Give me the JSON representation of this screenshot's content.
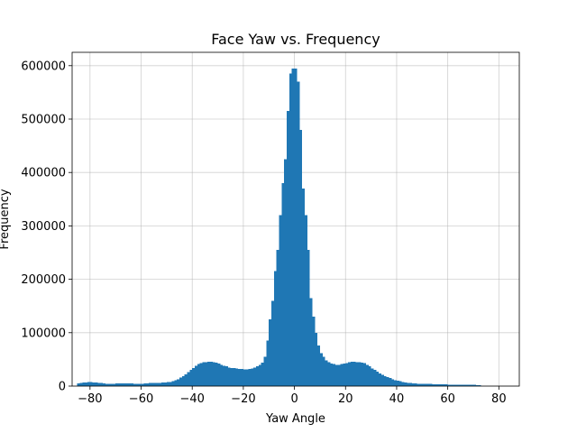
{
  "chart_data": {
    "type": "bar",
    "title": "Face Yaw vs. Frequency",
    "xlabel": "Yaw Angle",
    "ylabel": "Frequency",
    "xlim": [
      -87,
      88
    ],
    "ylim": [
      0,
      625000
    ],
    "xticks": [
      -80,
      -60,
      -40,
      -20,
      0,
      20,
      40,
      60,
      80
    ],
    "xtick_labels": [
      "−80",
      "−60",
      "−40",
      "−20",
      "0",
      "20",
      "40",
      "60",
      "80"
    ],
    "yticks": [
      0,
      100000,
      200000,
      300000,
      400000,
      500000,
      600000
    ],
    "ytick_labels": [
      "0",
      "100000",
      "200000",
      "300000",
      "400000",
      "500000",
      "600000"
    ],
    "grid": true,
    "bar_color": "#1f77b4",
    "bin_width": 1,
    "bin_edges_start": -85,
    "values": [
      5000,
      6000,
      7000,
      7000,
      7500,
      7500,
      7000,
      7000,
      6000,
      5500,
      5000,
      4500,
      4500,
      4500,
      4500,
      5000,
      5000,
      5000,
      5000,
      5000,
      5000,
      5000,
      4500,
      4500,
      4500,
      4500,
      5000,
      5000,
      5500,
      5500,
      6000,
      6000,
      6000,
      6500,
      7000,
      7500,
      8000,
      9500,
      11000,
      13000,
      16000,
      19000,
      22000,
      26000,
      30000,
      34000,
      38000,
      41000,
      43000,
      45000,
      45000,
      46000,
      45500,
      45000,
      44000,
      42000,
      40000,
      38000,
      37000,
      35000,
      34000,
      34000,
      33000,
      32000,
      32000,
      31000,
      31000,
      32000,
      33000,
      35000,
      37000,
      40000,
      44000,
      55000,
      85000,
      125000,
      160000,
      215000,
      255000,
      320000,
      380000,
      425000,
      515000,
      585000,
      595000,
      595000,
      570000,
      480000,
      370000,
      320000,
      255000,
      165000,
      130000,
      100000,
      76000,
      62000,
      55000,
      48000,
      45000,
      42000,
      41000,
      40000,
      40000,
      41000,
      42000,
      43000,
      45000,
      46000,
      46000,
      45000,
      45000,
      44000,
      43000,
      40000,
      37000,
      33000,
      30000,
      27000,
      24000,
      21000,
      19000,
      17000,
      15000,
      13000,
      11000,
      10000,
      9000,
      8000,
      7000,
      6000,
      5500,
      5000,
      5000,
      4500,
      4500,
      4500,
      4000,
      4000,
      4000,
      3500,
      3500,
      3000,
      3000,
      3000,
      3000,
      2500,
      2500,
      2500,
      2500,
      2500,
      2500,
      2500,
      2500,
      2500,
      2500,
      2500,
      2000,
      2000
    ]
  }
}
